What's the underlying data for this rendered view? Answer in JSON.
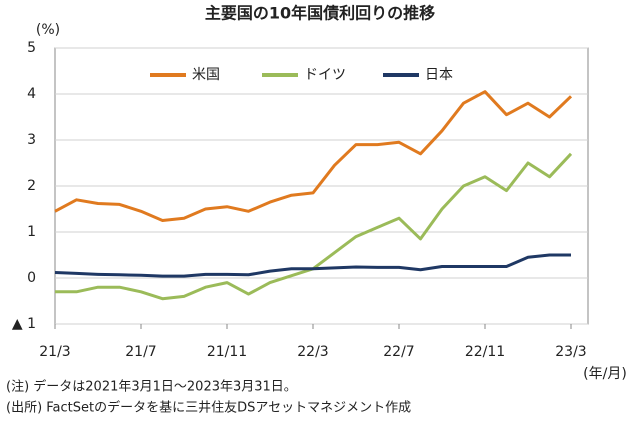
{
  "chart_data": {
    "type": "line",
    "title": "主要国の10年国債利回りの推移",
    "y_unit": "(%)",
    "x_unit": "(年/月)",
    "notes": [
      "(注) データは2021年3月1日～2023年3月31日。",
      "(出所) FactSetのデータを基に三井住友DSアセットマネジメント作成"
    ],
    "x": [
      "2021-03",
      "2021-04",
      "2021-05",
      "2021-06",
      "2021-07",
      "2021-08",
      "2021-09",
      "2021-10",
      "2021-11",
      "2021-12",
      "2022-01",
      "2022-02",
      "2022-03",
      "2022-04",
      "2022-05",
      "2022-06",
      "2022-07",
      "2022-08",
      "2022-09",
      "2022-10",
      "2022-11",
      "2022-12",
      "2023-01",
      "2023-02",
      "2023-03"
    ],
    "xticks": [
      {
        "value": "2021-03",
        "label": "21/3"
      },
      {
        "value": "2021-07",
        "label": "21/7"
      },
      {
        "value": "2021-11",
        "label": "21/11"
      },
      {
        "value": "2022-03",
        "label": "22/3"
      },
      {
        "value": "2022-07",
        "label": "22/7"
      },
      {
        "value": "2022-11",
        "label": "22/11"
      },
      {
        "value": "2023-03",
        "label": "23/3"
      }
    ],
    "ylim": [
      -1,
      5
    ],
    "yticks": [
      {
        "value": -1,
        "label": "▲ 1"
      },
      0,
      1,
      2,
      3,
      4,
      5
    ],
    "grid": true,
    "legend": "top",
    "series": [
      {
        "name": "米国",
        "color": "#e07a1f",
        "values": [
          1.45,
          1.7,
          1.62,
          1.6,
          1.45,
          1.25,
          1.3,
          1.5,
          1.55,
          1.45,
          1.65,
          1.8,
          1.85,
          2.45,
          2.9,
          2.9,
          2.95,
          2.7,
          3.2,
          3.8,
          4.05,
          3.55,
          3.8,
          3.5,
          3.95
        ]
      },
      {
        "name": "ドイツ",
        "color": "#9bbb59",
        "values": [
          -0.3,
          -0.3,
          -0.2,
          -0.2,
          -0.3,
          -0.45,
          -0.4,
          -0.2,
          -0.1,
          -0.35,
          -0.1,
          0.05,
          0.2,
          0.55,
          0.9,
          1.1,
          1.3,
          0.85,
          1.5,
          2.0,
          2.2,
          1.9,
          2.5,
          2.2,
          2.7
        ]
      },
      {
        "name": "日本",
        "color": "#1f3864",
        "values": [
          0.12,
          0.1,
          0.08,
          0.07,
          0.06,
          0.04,
          0.04,
          0.08,
          0.08,
          0.07,
          0.15,
          0.2,
          0.2,
          0.22,
          0.24,
          0.23,
          0.23,
          0.18,
          0.25,
          0.25,
          0.25,
          0.25,
          0.45,
          0.5,
          0.5
        ]
      }
    ]
  }
}
